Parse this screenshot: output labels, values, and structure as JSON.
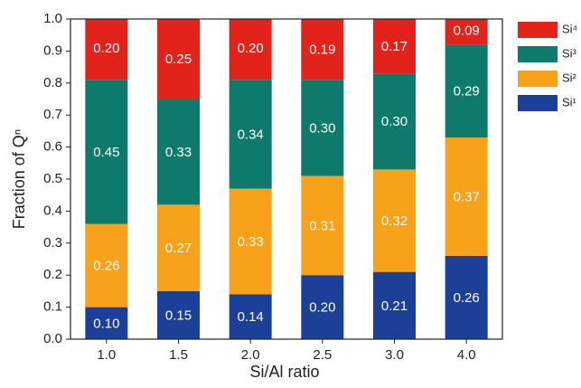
{
  "chart_data": {
    "type": "stacked_bar",
    "x_label": "Si/Al ratio",
    "y_label": "Fraction of Qⁿ",
    "categories": [
      "1.0",
      "1.5",
      "2.0",
      "2.5",
      "3.0",
      "4.0"
    ],
    "series": [
      {
        "name": "Si¹",
        "color": "#1c3f98",
        "values": [
          0.1,
          0.15,
          0.14,
          0.2,
          0.21,
          0.26
        ],
        "value_labels": [
          "0.10",
          "0.15",
          "0.14",
          "0.20",
          "0.21",
          "0.26"
        ]
      },
      {
        "name": "Si²",
        "color": "#f8a11b",
        "values": [
          0.26,
          0.27,
          0.33,
          0.31,
          0.32,
          0.37
        ],
        "value_labels": [
          "0.26",
          "0.27",
          "0.33",
          "0.31",
          "0.32",
          "0.37"
        ]
      },
      {
        "name": "Si³",
        "color": "#0d7a6c",
        "values": [
          0.45,
          0.33,
          0.34,
          0.3,
          0.3,
          0.29
        ],
        "value_labels": [
          "0.45",
          "0.33",
          "0.34",
          "0.30",
          "0.30",
          "0.29"
        ]
      },
      {
        "name": "Si⁴",
        "color": "#e1231b",
        "values": [
          0.2,
          0.25,
          0.2,
          0.19,
          0.17,
          0.09
        ],
        "value_labels": [
          "0.20",
          "0.25",
          "0.20",
          "0.19",
          "0.17",
          "0.09"
        ]
      }
    ],
    "ylim": [
      0,
      1
    ],
    "yticks": [
      {
        "value": 0,
        "label": "0.0"
      },
      0.1,
      0.2,
      0.3,
      0.4,
      0.5,
      0.6,
      0.7,
      0.8,
      0.9,
      {
        "value": 1,
        "label": "1.0"
      }
    ],
    "legend": "right"
  }
}
